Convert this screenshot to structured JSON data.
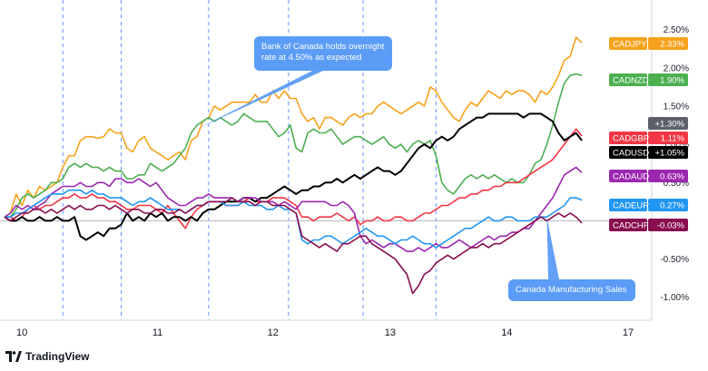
{
  "brand": {
    "logo_text": "TV",
    "name": "TradingView"
  },
  "chart_data": {
    "type": "line",
    "x_labels": [
      "10",
      "11",
      "12",
      "13",
      "14",
      "17"
    ],
    "x": [
      0,
      1,
      2,
      3,
      4,
      5,
      6,
      7,
      8,
      9,
      10,
      11,
      12,
      13,
      14,
      15,
      16,
      17,
      18,
      19,
      20,
      21,
      22,
      23,
      24,
      25,
      26,
      27,
      28,
      29,
      30,
      31,
      32,
      33,
      34,
      35,
      36,
      37,
      38,
      39,
      40,
      41,
      42,
      43,
      44,
      45,
      46,
      47,
      48,
      49,
      50,
      51,
      52,
      53,
      54,
      55,
      56,
      57,
      58,
      59,
      60,
      61,
      62,
      63,
      64,
      65,
      66,
      67,
      68,
      69,
      70,
      71,
      72,
      73,
      74,
      75,
      76,
      77,
      78,
      79,
      80,
      81,
      82,
      83,
      84,
      85,
      86,
      87,
      88,
      89,
      90,
      91,
      92,
      93,
      94,
      95,
      96,
      97,
      98,
      99
    ],
    "y_ticks": [
      {
        "value": 2.5,
        "label": "2.50%"
      },
      {
        "value": 2.0,
        "label": "2.00%"
      },
      {
        "value": 1.5,
        "label": "1.50%"
      },
      {
        "value": 1.0,
        "label": "1.00%"
      },
      {
        "value": 0.5,
        "label": "0.50%"
      },
      {
        "value": -0.5,
        "label": "-0.50%"
      },
      {
        "value": -1.0,
        "label": "-1.00%"
      }
    ],
    "ylim": [
      -1.3,
      2.65
    ],
    "zero_line": 0,
    "series": [
      {
        "name": "CADJPY",
        "value_label": "2.33%",
        "color": "#f7a21b",
        "last": 2.33,
        "values": [
          0.05,
          0.1,
          0.35,
          0.2,
          0.4,
          0.3,
          0.45,
          0.4,
          0.45,
          0.5,
          0.7,
          0.85,
          0.85,
          1.05,
          1.1,
          1.1,
          1.08,
          1.1,
          1.2,
          1.15,
          1.15,
          0.95,
          0.9,
          1.05,
          1.1,
          0.95,
          0.9,
          0.85,
          0.8,
          0.85,
          0.9,
          0.8,
          1.05,
          1.1,
          1.3,
          1.35,
          1.5,
          1.45,
          1.5,
          1.55,
          1.55,
          1.55,
          1.55,
          1.65,
          1.55,
          1.55,
          1.7,
          1.6,
          1.7,
          1.6,
          1.6,
          1.4,
          1.3,
          1.35,
          1.2,
          1.35,
          1.35,
          1.3,
          1.25,
          1.35,
          1.4,
          1.35,
          1.4,
          1.4,
          1.5,
          1.55,
          1.5,
          1.45,
          1.4,
          1.45,
          1.5,
          1.55,
          1.5,
          1.75,
          1.7,
          1.55,
          1.45,
          1.35,
          1.3,
          1.45,
          1.55,
          1.5,
          1.6,
          1.7,
          1.65,
          1.6,
          1.7,
          1.65,
          1.7,
          1.7,
          1.65,
          1.55,
          1.7,
          1.65,
          1.75,
          1.9,
          2.1,
          2.15,
          2.4,
          2.33
        ]
      },
      {
        "name": "CADNZD",
        "value_label": "1.90%",
        "color": "#4caf50",
        "last": 1.9,
        "values": [
          0.05,
          0.05,
          0.15,
          0.3,
          0.35,
          0.3,
          0.35,
          0.4,
          0.5,
          0.5,
          0.55,
          0.7,
          0.75,
          0.7,
          0.75,
          0.7,
          0.7,
          0.65,
          0.7,
          0.65,
          0.65,
          0.55,
          0.55,
          0.6,
          0.6,
          0.75,
          0.7,
          0.65,
          0.7,
          0.75,
          0.85,
          0.95,
          1.15,
          1.25,
          1.3,
          1.35,
          1.3,
          1.35,
          1.3,
          1.25,
          1.3,
          1.4,
          1.35,
          1.3,
          1.3,
          1.3,
          1.2,
          1.1,
          1.15,
          1.25,
          0.95,
          0.9,
          1.15,
          1.2,
          1.15,
          1.15,
          1.2,
          1.1,
          1.0,
          1.05,
          1.1,
          1.1,
          1.05,
          1.0,
          1.05,
          1.1,
          1.0,
          0.95,
          1.0,
          0.9,
          1.0,
          1.05,
          1.0,
          1.05,
          0.85,
          0.5,
          0.4,
          0.35,
          0.45,
          0.55,
          0.6,
          0.55,
          0.6,
          0.55,
          0.6,
          0.55,
          0.5,
          0.55,
          0.5,
          0.5,
          0.6,
          0.75,
          0.8,
          1.0,
          1.25,
          1.55,
          1.8,
          1.9,
          1.92,
          1.9
        ]
      },
      {
        "name": "CADGBP",
        "value_label": "1.11%",
        "color": "#f23645",
        "last": 1.11,
        "values": [
          0.05,
          0.05,
          0.0,
          0.05,
          0.15,
          0.2,
          0.15,
          0.2,
          0.2,
          0.25,
          0.3,
          0.3,
          0.35,
          0.3,
          0.3,
          0.35,
          0.3,
          0.3,
          0.25,
          0.25,
          0.2,
          0.15,
          0.15,
          0.2,
          0.2,
          0.2,
          0.15,
          0.1,
          0.2,
          0.1,
          0.0,
          -0.1,
          0.05,
          0.15,
          0.2,
          0.25,
          0.25,
          0.25,
          0.2,
          0.2,
          0.2,
          0.25,
          0.3,
          0.25,
          0.25,
          0.25,
          0.3,
          0.3,
          0.3,
          0.25,
          0.2,
          0.05,
          0.05,
          0.0,
          0.05,
          0.05,
          0.05,
          0.1,
          0.05,
          0.0,
          0.05,
          -0.05,
          0.0,
          0.0,
          0.05,
          0.0,
          0.0,
          0.05,
          0.05,
          0.0,
          0.0,
          0.05,
          0.1,
          0.1,
          0.15,
          0.2,
          0.2,
          0.25,
          0.3,
          0.3,
          0.35,
          0.35,
          0.4,
          0.4,
          0.45,
          0.45,
          0.5,
          0.5,
          0.5,
          0.55,
          0.6,
          0.65,
          0.7,
          0.75,
          0.8,
          0.9,
          1.0,
          1.1,
          1.2,
          1.11
        ]
      },
      {
        "name": "CADUSD",
        "value_label": "+1.05%",
        "color": "#000000",
        "last": 1.05,
        "values": [
          0.05,
          0.0,
          0.0,
          0.05,
          0.0,
          0.0,
          0.05,
          0.0,
          0.0,
          0.05,
          0.0,
          0.0,
          0.05,
          -0.2,
          -0.25,
          -0.2,
          -0.15,
          -0.2,
          -0.1,
          -0.1,
          -0.05,
          0.1,
          0.0,
          0.05,
          0.0,
          0.1,
          0.05,
          0.1,
          0.0,
          0.05,
          0.05,
          0.0,
          0.05,
          0.0,
          0.1,
          0.15,
          0.15,
          0.2,
          0.25,
          0.25,
          0.25,
          0.3,
          0.3,
          0.25,
          0.3,
          0.3,
          0.35,
          0.4,
          0.45,
          0.4,
          0.35,
          0.4,
          0.4,
          0.45,
          0.45,
          0.5,
          0.5,
          0.55,
          0.5,
          0.55,
          0.6,
          0.55,
          0.6,
          0.65,
          0.7,
          0.65,
          0.65,
          0.6,
          0.65,
          0.75,
          0.85,
          0.95,
          1.0,
          0.95,
          1.05,
          1.1,
          1.05,
          1.1,
          1.2,
          1.25,
          1.3,
          1.35,
          1.35,
          1.4,
          1.4,
          1.4,
          1.4,
          1.4,
          1.4,
          1.35,
          1.4,
          1.4,
          1.4,
          1.35,
          1.3,
          1.15,
          1.05,
          1.1,
          1.15,
          1.05
        ]
      },
      {
        "name": "CADAUD",
        "value_label": "0.63%",
        "color": "#9c27b0",
        "last": 0.63,
        "values": [
          0.05,
          0.1,
          0.2,
          0.15,
          0.2,
          0.15,
          0.2,
          0.25,
          0.35,
          0.4,
          0.45,
          0.45,
          0.45,
          0.5,
          0.45,
          0.45,
          0.5,
          0.5,
          0.45,
          0.55,
          0.55,
          0.5,
          0.5,
          0.55,
          0.5,
          0.45,
          0.5,
          0.4,
          0.3,
          0.25,
          0.2,
          0.2,
          0.25,
          0.3,
          0.3,
          0.35,
          0.3,
          0.3,
          0.3,
          0.3,
          0.25,
          0.3,
          0.3,
          0.3,
          0.25,
          0.25,
          0.25,
          0.2,
          0.25,
          0.2,
          0.15,
          0.25,
          0.25,
          0.25,
          0.25,
          0.25,
          0.2,
          0.2,
          0.25,
          0.2,
          0.1,
          -0.2,
          -0.3,
          -0.25,
          -0.3,
          -0.35,
          -0.3,
          -0.3,
          -0.35,
          -0.4,
          -0.4,
          -0.35,
          -0.4,
          -0.35,
          -0.3,
          -0.35,
          -0.35,
          -0.3,
          -0.25,
          -0.3,
          -0.35,
          -0.3,
          -0.25,
          -0.2,
          -0.25,
          -0.2,
          -0.2,
          -0.15,
          -0.15,
          -0.1,
          -0.1,
          0.0,
          0.1,
          0.2,
          0.3,
          0.45,
          0.6,
          0.65,
          0.7,
          0.63
        ]
      },
      {
        "name": "CADEUR",
        "value_label": "0.27%",
        "color": "#2196f3",
        "last": 0.27,
        "values": [
          0.05,
          0.05,
          0.1,
          0.1,
          0.15,
          0.2,
          0.25,
          0.3,
          0.35,
          0.35,
          0.35,
          0.4,
          0.4,
          0.4,
          0.35,
          0.4,
          0.35,
          0.35,
          0.3,
          0.3,
          0.3,
          0.25,
          0.2,
          0.25,
          0.25,
          0.3,
          0.25,
          0.2,
          0.15,
          0.15,
          0.15,
          0.1,
          0.15,
          0.2,
          0.2,
          0.25,
          0.25,
          0.25,
          0.2,
          0.2,
          0.2,
          0.25,
          0.2,
          0.2,
          0.2,
          0.15,
          0.15,
          0.2,
          0.15,
          0.15,
          0.1,
          -0.25,
          -0.3,
          -0.25,
          -0.25,
          -0.2,
          -0.2,
          -0.25,
          -0.3,
          -0.25,
          -0.2,
          -0.15,
          -0.1,
          -0.15,
          -0.2,
          -0.2,
          -0.25,
          -0.3,
          -0.25,
          -0.25,
          -0.2,
          -0.25,
          -0.3,
          -0.3,
          -0.35,
          -0.3,
          -0.25,
          -0.2,
          -0.15,
          -0.1,
          -0.1,
          -0.05,
          0.0,
          0.05,
          0.0,
          0.0,
          0.05,
          0.05,
          0.0,
          0.0,
          0.0,
          0.05,
          0.05,
          0.05,
          0.1,
          0.15,
          0.2,
          0.3,
          0.3,
          0.27
        ]
      },
      {
        "name": "CADCHF",
        "value_label": "-0.03%",
        "color": "#880e4f",
        "last": -0.03,
        "values": [
          0.05,
          0.0,
          0.05,
          0.1,
          0.1,
          0.15,
          0.15,
          0.1,
          0.15,
          0.1,
          0.15,
          0.2,
          0.15,
          0.2,
          0.15,
          0.15,
          0.2,
          0.2,
          0.15,
          0.2,
          0.15,
          0.1,
          0.15,
          0.15,
          0.1,
          0.1,
          0.15,
          0.15,
          0.1,
          0.1,
          0.15,
          0.1,
          0.15,
          0.2,
          0.2,
          0.25,
          0.25,
          0.25,
          0.25,
          0.3,
          0.25,
          0.25,
          0.25,
          0.2,
          0.25,
          0.25,
          0.2,
          0.2,
          0.2,
          0.15,
          0.1,
          -0.2,
          -0.25,
          -0.3,
          -0.35,
          -0.3,
          -0.35,
          -0.4,
          -0.3,
          -0.3,
          -0.25,
          -0.2,
          -0.2,
          -0.3,
          -0.35,
          -0.4,
          -0.45,
          -0.5,
          -0.6,
          -0.7,
          -0.95,
          -0.85,
          -0.7,
          -0.65,
          -0.55,
          -0.5,
          -0.45,
          -0.5,
          -0.45,
          -0.4,
          -0.35,
          -0.35,
          -0.3,
          -0.35,
          -0.3,
          -0.3,
          -0.25,
          -0.2,
          -0.15,
          -0.1,
          -0.05,
          0.0,
          0.05,
          0.0,
          0.05,
          0.1,
          0.05,
          0.1,
          0.05,
          -0.03
        ]
      }
    ],
    "extra_tags": [
      {
        "label": "+1.30%",
        "value": 1.3,
        "color": "#5d606b"
      }
    ],
    "annotations": [
      {
        "text_lines": [
          "Bank of Canada holds overnight",
          "rate at 4.50% as expected"
        ],
        "target_x": 33,
        "target_y": 1.2
      },
      {
        "text_lines": [
          "Canada Manufacturing Sales"
        ],
        "target_x": 93,
        "target_y": 0.05
      }
    ],
    "session_dividers_x": [
      10,
      20,
      35,
      48.7,
      61.5,
      74
    ],
    "grid": false
  }
}
